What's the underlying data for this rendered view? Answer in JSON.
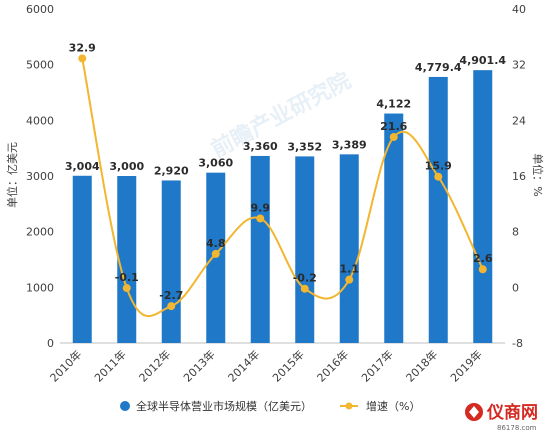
{
  "chart_data": {
    "type": "bar+line",
    "categories": [
      "2010年",
      "2011年",
      "2012年",
      "2013年",
      "2014年",
      "2015年",
      "2016年",
      "2017年",
      "2018年",
      "2019年"
    ],
    "series": [
      {
        "name": "全球半导体营业市场规模（亿美元）",
        "type": "bar",
        "axis": "left",
        "values": [
          3004,
          3000,
          2920,
          3060,
          3360,
          3352,
          3389,
          4122,
          4779.4,
          4901.4
        ],
        "labels": [
          "3,004",
          "3,000",
          "2,920",
          "3,060",
          "3,360",
          "3,352",
          "3,389",
          "4,122",
          "4,779.4",
          "4,901.4"
        ]
      },
      {
        "name": "增速（%）",
        "type": "line",
        "axis": "right",
        "values": [
          32.9,
          -0.1,
          -2.7,
          4.8,
          9.9,
          -0.2,
          1.1,
          21.6,
          15.9,
          2.6
        ],
        "labels": [
          "32.9",
          "-0.1",
          "-2.7",
          "4.8",
          "9.9",
          "-0.2",
          "1.1",
          "21.6",
          "15.9",
          "2.6"
        ]
      }
    ],
    "ylabel": "单位：亿美元",
    "y2label": "单位：%",
    "ylim": [
      0,
      6000
    ],
    "yticks": [
      "0",
      "1000",
      "2000",
      "3000",
      "4000",
      "5000",
      "6000"
    ],
    "y2lim": [
      -8,
      40
    ],
    "y2ticks": [
      "-8",
      "0",
      "8",
      "16",
      "24",
      "32",
      "40"
    ],
    "legend_position": "bottom",
    "grid": false,
    "colors": {
      "bar": "#1f78c8",
      "line": "#f2b630"
    }
  },
  "watermark": {
    "text": "前瞻产业研究院"
  },
  "logo": {
    "text": "仪商网",
    "subtext": "86178.com"
  }
}
